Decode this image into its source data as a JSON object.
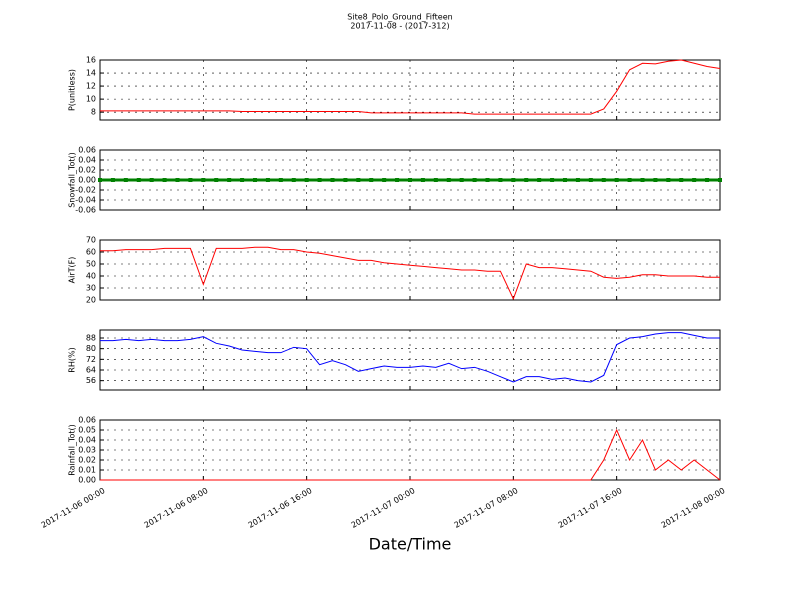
{
  "chart_data": [
    {
      "type": "line",
      "title": "Site8_Polo_Ground_Fifteen",
      "subtitle": "2017-11-08 - (2017-312)",
      "ylabel": "P(unitless)",
      "x": [
        "2017-11-06 00:00",
        "2017-11-06 01:00",
        "2017-11-06 02:00",
        "2017-11-06 03:00",
        "2017-11-06 04:00",
        "2017-11-06 05:00",
        "2017-11-06 06:00",
        "2017-11-06 07:00",
        "2017-11-06 08:00",
        "2017-11-06 09:00",
        "2017-11-06 10:00",
        "2017-11-06 11:00",
        "2017-11-06 12:00",
        "2017-11-06 13:00",
        "2017-11-06 14:00",
        "2017-11-06 15:00",
        "2017-11-06 16:00",
        "2017-11-06 17:00",
        "2017-11-06 18:00",
        "2017-11-06 19:00",
        "2017-11-06 20:00",
        "2017-11-06 21:00",
        "2017-11-06 22:00",
        "2017-11-06 23:00",
        "2017-11-07 00:00",
        "2017-11-07 01:00",
        "2017-11-07 02:00",
        "2017-11-07 03:00",
        "2017-11-07 04:00",
        "2017-11-07 05:00",
        "2017-11-07 06:00",
        "2017-11-07 07:00",
        "2017-11-07 08:00",
        "2017-11-07 09:00",
        "2017-11-07 10:00",
        "2017-11-07 11:00",
        "2017-11-07 12:00",
        "2017-11-07 13:00",
        "2017-11-07 14:00",
        "2017-11-07 15:00",
        "2017-11-07 16:00",
        "2017-11-07 17:00",
        "2017-11-07 18:00",
        "2017-11-07 19:00",
        "2017-11-07 20:00",
        "2017-11-07 21:00",
        "2017-11-07 22:00",
        "2017-11-07 23:00",
        "2017-11-08 00:00"
      ],
      "series": [
        {
          "color": "#ff0000",
          "values": [
            8.2,
            8.2,
            8.2,
            8.2,
            8.2,
            8.2,
            8.2,
            8.2,
            8.2,
            8.2,
            8.2,
            8.1,
            8.1,
            8.1,
            8.1,
            8.1,
            8.1,
            8.1,
            8.1,
            8.1,
            8.1,
            7.9,
            7.9,
            7.9,
            7.9,
            7.9,
            7.9,
            7.9,
            7.9,
            7.7,
            7.7,
            7.7,
            7.7,
            7.7,
            7.7,
            7.7,
            7.7,
            7.7,
            7.7,
            8.5,
            11.2,
            14.5,
            15.5,
            15.4,
            15.8,
            16.0,
            15.5,
            15.0,
            14.7
          ]
        }
      ],
      "xlim": [
        "2017-11-06 00:00",
        "2017-11-08 00:00"
      ],
      "xticks": [
        "2017-11-06 00:00",
        "2017-11-06 08:00",
        "2017-11-06 16:00",
        "2017-11-07 00:00",
        "2017-11-07 08:00",
        "2017-11-07 16:00",
        "2017-11-08 00:00"
      ],
      "ylim": [
        6.8,
        16
      ],
      "yticks": [
        8,
        10,
        12,
        14,
        16
      ],
      "grid": true
    },
    {
      "type": "line",
      "ylabel": "Snowfall_Tot()",
      "markers": true,
      "x": [
        "2017-11-06 00:00",
        "2017-11-06 01:00",
        "2017-11-06 02:00",
        "2017-11-06 03:00",
        "2017-11-06 04:00",
        "2017-11-06 05:00",
        "2017-11-06 06:00",
        "2017-11-06 07:00",
        "2017-11-06 08:00",
        "2017-11-06 09:00",
        "2017-11-06 10:00",
        "2017-11-06 11:00",
        "2017-11-06 12:00",
        "2017-11-06 13:00",
        "2017-11-06 14:00",
        "2017-11-06 15:00",
        "2017-11-06 16:00",
        "2017-11-06 17:00",
        "2017-11-06 18:00",
        "2017-11-06 19:00",
        "2017-11-06 20:00",
        "2017-11-06 21:00",
        "2017-11-06 22:00",
        "2017-11-06 23:00",
        "2017-11-07 00:00",
        "2017-11-07 01:00",
        "2017-11-07 02:00",
        "2017-11-07 03:00",
        "2017-11-07 04:00",
        "2017-11-07 05:00",
        "2017-11-07 06:00",
        "2017-11-07 07:00",
        "2017-11-07 08:00",
        "2017-11-07 09:00",
        "2017-11-07 10:00",
        "2017-11-07 11:00",
        "2017-11-07 12:00",
        "2017-11-07 13:00",
        "2017-11-07 14:00",
        "2017-11-07 15:00",
        "2017-11-07 16:00",
        "2017-11-07 17:00",
        "2017-11-07 18:00",
        "2017-11-07 19:00",
        "2017-11-07 20:00",
        "2017-11-07 21:00",
        "2017-11-07 22:00",
        "2017-11-07 23:00",
        "2017-11-08 00:00"
      ],
      "series": [
        {
          "color": "#008000",
          "values": [
            0,
            0,
            0,
            0,
            0,
            0,
            0,
            0,
            0,
            0,
            0,
            0,
            0,
            0,
            0,
            0,
            0,
            0,
            0,
            0,
            0,
            0,
            0,
            0,
            0,
            0,
            0,
            0,
            0,
            0,
            0,
            0,
            0,
            0,
            0,
            0,
            0,
            0,
            0,
            0,
            0,
            0,
            0,
            0,
            0,
            0,
            0,
            0,
            0
          ]
        }
      ],
      "xlim": [
        "2017-11-06 00:00",
        "2017-11-08 00:00"
      ],
      "xticks": [
        "2017-11-06 00:00",
        "2017-11-06 08:00",
        "2017-11-06 16:00",
        "2017-11-07 00:00",
        "2017-11-07 08:00",
        "2017-11-07 16:00",
        "2017-11-08 00:00"
      ],
      "ylim": [
        -0.06,
        0.06
      ],
      "yticks": [
        -0.06,
        -0.04,
        -0.02,
        {
          "value": 0,
          "label": "0.00"
        },
        0.02,
        0.04,
        0.06
      ],
      "grid": true
    },
    {
      "type": "line",
      "ylabel": "AirT(F)",
      "x": [
        "2017-11-06 00:00",
        "2017-11-06 01:00",
        "2017-11-06 02:00",
        "2017-11-06 03:00",
        "2017-11-06 04:00",
        "2017-11-06 05:00",
        "2017-11-06 06:00",
        "2017-11-06 07:00",
        "2017-11-06 08:00",
        "2017-11-06 09:00",
        "2017-11-06 10:00",
        "2017-11-06 11:00",
        "2017-11-06 12:00",
        "2017-11-06 13:00",
        "2017-11-06 14:00",
        "2017-11-06 15:00",
        "2017-11-06 16:00",
        "2017-11-06 17:00",
        "2017-11-06 18:00",
        "2017-11-06 19:00",
        "2017-11-06 20:00",
        "2017-11-06 21:00",
        "2017-11-06 22:00",
        "2017-11-06 23:00",
        "2017-11-07 00:00",
        "2017-11-07 01:00",
        "2017-11-07 02:00",
        "2017-11-07 03:00",
        "2017-11-07 04:00",
        "2017-11-07 05:00",
        "2017-11-07 06:00",
        "2017-11-07 07:00",
        "2017-11-07 08:00",
        "2017-11-07 09:00",
        "2017-11-07 10:00",
        "2017-11-07 11:00",
        "2017-11-07 12:00",
        "2017-11-07 13:00",
        "2017-11-07 14:00",
        "2017-11-07 15:00",
        "2017-11-07 16:00",
        "2017-11-07 17:00",
        "2017-11-07 18:00",
        "2017-11-07 19:00",
        "2017-11-07 20:00",
        "2017-11-07 21:00",
        "2017-11-07 22:00",
        "2017-11-07 23:00",
        "2017-11-08 00:00"
      ],
      "series": [
        {
          "color": "#ff0000",
          "values": [
            61,
            61,
            62,
            62,
            62,
            63,
            63,
            63,
            33,
            63,
            63,
            63,
            64,
            64,
            62,
            62,
            60,
            59,
            57,
            55,
            53,
            53,
            51,
            50,
            49,
            48,
            47,
            46,
            45,
            45,
            44,
            44,
            21,
            50,
            47,
            47,
            46,
            45,
            44,
            39,
            38,
            39,
            41,
            41,
            40,
            40,
            40,
            39,
            39
          ]
        }
      ],
      "xlim": [
        "2017-11-06 00:00",
        "2017-11-08 00:00"
      ],
      "xticks": [
        "2017-11-06 00:00",
        "2017-11-06 08:00",
        "2017-11-06 16:00",
        "2017-11-07 00:00",
        "2017-11-07 08:00",
        "2017-11-07 16:00",
        "2017-11-08 00:00"
      ],
      "ylim": [
        20,
        70
      ],
      "yticks": [
        20,
        30,
        40,
        50,
        60,
        70
      ],
      "grid": true
    },
    {
      "type": "line",
      "ylabel": "RH(%)",
      "x": [
        "2017-11-06 00:00",
        "2017-11-06 01:00",
        "2017-11-06 02:00",
        "2017-11-06 03:00",
        "2017-11-06 04:00",
        "2017-11-06 05:00",
        "2017-11-06 06:00",
        "2017-11-06 07:00",
        "2017-11-06 08:00",
        "2017-11-06 09:00",
        "2017-11-06 10:00",
        "2017-11-06 11:00",
        "2017-11-06 12:00",
        "2017-11-06 13:00",
        "2017-11-06 14:00",
        "2017-11-06 15:00",
        "2017-11-06 16:00",
        "2017-11-06 17:00",
        "2017-11-06 18:00",
        "2017-11-06 19:00",
        "2017-11-06 20:00",
        "2017-11-06 21:00",
        "2017-11-06 22:00",
        "2017-11-06 23:00",
        "2017-11-07 00:00",
        "2017-11-07 01:00",
        "2017-11-07 02:00",
        "2017-11-07 03:00",
        "2017-11-07 04:00",
        "2017-11-07 05:00",
        "2017-11-07 06:00",
        "2017-11-07 07:00",
        "2017-11-07 08:00",
        "2017-11-07 09:00",
        "2017-11-07 10:00",
        "2017-11-07 11:00",
        "2017-11-07 12:00",
        "2017-11-07 13:00",
        "2017-11-07 14:00",
        "2017-11-07 15:00",
        "2017-11-07 16:00",
        "2017-11-07 17:00",
        "2017-11-07 18:00",
        "2017-11-07 19:00",
        "2017-11-07 20:00",
        "2017-11-07 21:00",
        "2017-11-07 22:00",
        "2017-11-07 23:00",
        "2017-11-08 00:00"
      ],
      "series": [
        {
          "color": "#0000ff",
          "values": [
            86,
            86,
            87,
            86,
            87,
            86,
            86,
            87,
            89,
            84,
            82,
            79,
            78,
            77,
            77,
            81,
            80,
            68,
            71,
            68,
            63,
            65,
            67,
            66,
            66,
            67,
            66,
            69,
            65,
            66,
            63,
            59,
            55,
            59,
            59,
            57,
            58,
            56,
            55,
            60,
            83,
            88,
            89,
            91,
            92,
            92,
            90,
            88,
            88
          ]
        }
      ],
      "xlim": [
        "2017-11-06 00:00",
        "2017-11-08 00:00"
      ],
      "xticks": [
        "2017-11-06 00:00",
        "2017-11-06 08:00",
        "2017-11-06 16:00",
        "2017-11-07 00:00",
        "2017-11-07 08:00",
        "2017-11-07 16:00",
        "2017-11-08 00:00"
      ],
      "ylim": [
        49,
        94
      ],
      "yticks": [
        56,
        64,
        72,
        80,
        88
      ],
      "grid": true
    },
    {
      "type": "line",
      "ylabel": "Rainfall_Tot()",
      "xlabel": "Date/Time",
      "x": [
        "2017-11-06 00:00",
        "2017-11-06 01:00",
        "2017-11-06 02:00",
        "2017-11-06 03:00",
        "2017-11-06 04:00",
        "2017-11-06 05:00",
        "2017-11-06 06:00",
        "2017-11-06 07:00",
        "2017-11-06 08:00",
        "2017-11-06 09:00",
        "2017-11-06 10:00",
        "2017-11-06 11:00",
        "2017-11-06 12:00",
        "2017-11-06 13:00",
        "2017-11-06 14:00",
        "2017-11-06 15:00",
        "2017-11-06 16:00",
        "2017-11-06 17:00",
        "2017-11-06 18:00",
        "2017-11-06 19:00",
        "2017-11-06 20:00",
        "2017-11-06 21:00",
        "2017-11-06 22:00",
        "2017-11-06 23:00",
        "2017-11-07 00:00",
        "2017-11-07 01:00",
        "2017-11-07 02:00",
        "2017-11-07 03:00",
        "2017-11-07 04:00",
        "2017-11-07 05:00",
        "2017-11-07 06:00",
        "2017-11-07 07:00",
        "2017-11-07 08:00",
        "2017-11-07 09:00",
        "2017-11-07 10:00",
        "2017-11-07 11:00",
        "2017-11-07 12:00",
        "2017-11-07 13:00",
        "2017-11-07 14:00",
        "2017-11-07 15:00",
        "2017-11-07 16:00",
        "2017-11-07 17:00",
        "2017-11-07 18:00",
        "2017-11-07 19:00",
        "2017-11-07 20:00",
        "2017-11-07 21:00",
        "2017-11-07 22:00",
        "2017-11-07 23:00",
        "2017-11-08 00:00"
      ],
      "series": [
        {
          "color": "#ff0000",
          "values": [
            0,
            0,
            0,
            0,
            0,
            0,
            0,
            0,
            0,
            0,
            0,
            0,
            0,
            0,
            0,
            0,
            0,
            0,
            0,
            0,
            0,
            0,
            0,
            0,
            0,
            0,
            0,
            0,
            0,
            0,
            0,
            0,
            0,
            0,
            0,
            0,
            0,
            0,
            0,
            0.02,
            0.05,
            0.02,
            0.04,
            0.01,
            0.02,
            0.01,
            0.02,
            0.01,
            0
          ]
        }
      ],
      "xlim": [
        "2017-11-06 00:00",
        "2017-11-08 00:00"
      ],
      "xticks": [
        "2017-11-06 00:00",
        "2017-11-06 08:00",
        "2017-11-06 16:00",
        "2017-11-07 00:00",
        "2017-11-07 08:00",
        "2017-11-07 16:00",
        "2017-11-08 00:00"
      ],
      "ylim": [
        0,
        0.06
      ],
      "yticks": [
        {
          "value": 0,
          "label": "0.00"
        },
        0.01,
        0.02,
        0.03,
        0.04,
        0.05,
        0.06
      ],
      "grid": true
    }
  ]
}
